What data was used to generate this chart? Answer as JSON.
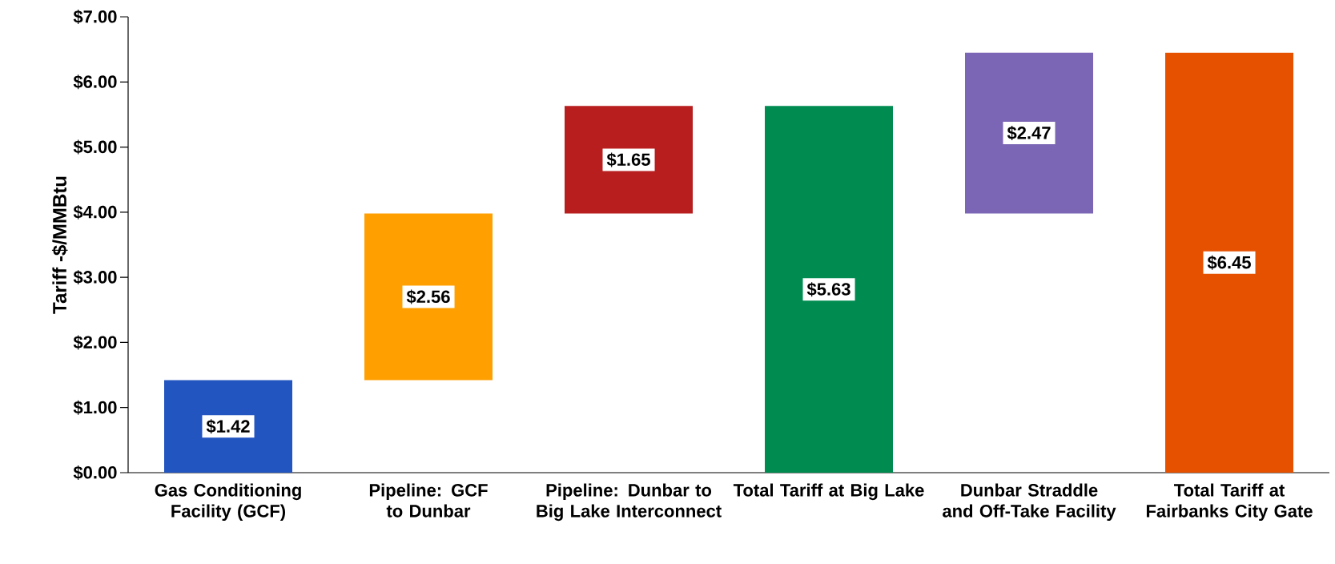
{
  "chart_data": {
    "type": "bar",
    "ylabel": "Tariff -$/MMBtu",
    "categories": [
      "Gas Conditioning Facility (GCF)",
      "Pipeline: GCF to Dunbar",
      "Pipeline: Dunbar to Big Lake Interconnect",
      "Total Tariff at Big Lake",
      "Dunbar Straddle and Off-Take Facility",
      "Total Tariff at Fairbanks City Gate"
    ],
    "values": [
      1.42,
      2.56,
      1.65,
      5.63,
      2.47,
      6.45
    ],
    "base": [
      0,
      1.42,
      3.98,
      0,
      3.98,
      0
    ],
    "colors": [
      "#2255c0",
      "#ffa000",
      "#b81e1e",
      "#008c50",
      "#7b66b5",
      "#e65100"
    ],
    "value_labels": [
      "$1.42",
      "$2.56",
      "$1.65",
      "$5.63",
      "$2.47",
      "$6.45"
    ],
    "ylim": [
      0,
      7
    ],
    "yticks": [
      {
        "value": 0,
        "label": "$0.00"
      },
      {
        "value": 1,
        "label": "$1.00"
      },
      {
        "value": 2,
        "label": "$2.00"
      },
      {
        "value": 3,
        "label": "$3.00"
      },
      {
        "value": 4,
        "label": "$4.00"
      },
      {
        "value": 5,
        "label": "$5.00"
      },
      {
        "value": 6,
        "label": "$6.00"
      },
      {
        "value": 7,
        "label": "$7.00"
      }
    ]
  }
}
